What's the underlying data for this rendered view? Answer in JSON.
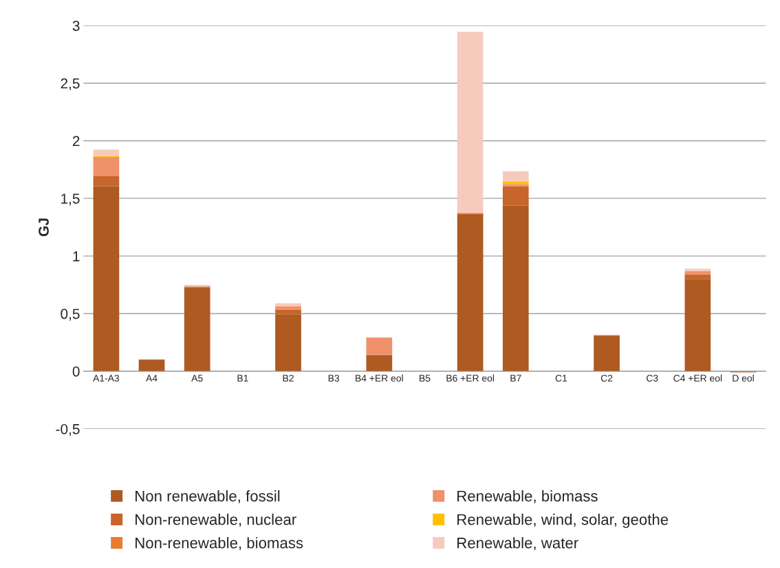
{
  "chart_data": {
    "type": "bar",
    "stacked": true,
    "ylabel": "GJ",
    "categories": [
      "A1-A3",
      "A4",
      "A5",
      "B1",
      "B2",
      "B3",
      "B4 +ER eol",
      "B5",
      "B6 +ER eol",
      "B7",
      "C1",
      "C2",
      "C3",
      "C4 +ER eol",
      "D eol"
    ],
    "series": [
      {
        "name": "Non renewable, fossil",
        "color": "#ae5a21",
        "values": [
          1.605,
          0.102,
          0.725,
          0,
          0.493,
          0,
          0.141,
          0,
          1.367,
          1.437,
          0,
          0.31,
          0,
          0.8,
          -0.01
        ]
      },
      {
        "name": "Non-renewable, nuclear",
        "color": "#c7652a",
        "values": [
          0.087,
          0,
          0.01,
          0,
          0.042,
          0,
          0,
          0,
          0,
          0.169,
          0,
          0,
          0,
          0.04,
          0
        ]
      },
      {
        "name": "Non-renewable, biomass",
        "color": "#e97c30",
        "values": [
          0,
          0,
          0,
          0,
          0,
          0,
          0,
          0,
          0,
          0,
          0,
          0,
          0,
          0,
          0
        ]
      },
      {
        "name": "Renewable, biomass",
        "color": "#f0916a",
        "values": [
          0.168,
          0,
          0,
          0,
          0.03,
          0,
          0.152,
          0,
          0.01,
          0.018,
          0,
          0.005,
          0,
          0.028,
          0
        ]
      },
      {
        "name": "Renewable, wind, solar, geothe",
        "color": "#ffc000",
        "values": [
          0.008,
          0,
          0,
          0,
          0,
          0,
          0,
          0,
          0,
          0.02,
          0,
          0,
          0,
          0,
          0
        ]
      },
      {
        "name": "Renewable, water",
        "color": "#f6cbbd",
        "values": [
          0.055,
          0,
          0.014,
          0,
          0.024,
          0,
          0,
          0,
          1.568,
          0.092,
          0,
          0,
          0,
          0.022,
          0
        ]
      }
    ],
    "ylim": [
      -0.5,
      3
    ],
    "yticks": [
      {
        "value": -0.5,
        "label": "-0,5"
      },
      0,
      {
        "value": 0.5,
        "label": "0,5"
      },
      1,
      {
        "value": 1.5,
        "label": "1,5"
      },
      2,
      {
        "value": 2.5,
        "label": "2,5"
      },
      3
    ],
    "grid": "y",
    "legend": "bottom"
  }
}
